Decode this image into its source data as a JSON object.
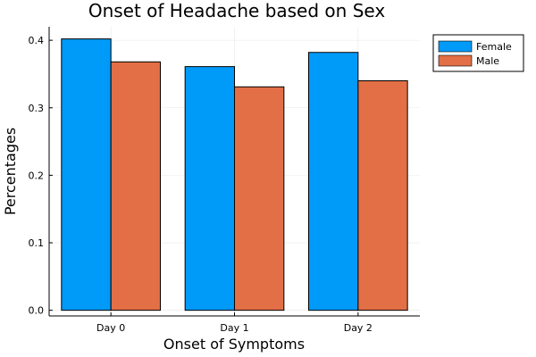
{
  "chart_data": {
    "type": "bar",
    "title": "Onset of Headache based on Sex",
    "xlabel": "Onset of Symptoms",
    "ylabel": "Percentages",
    "categories": [
      "Day 0",
      "Day 1",
      "Day 2"
    ],
    "series": [
      {
        "name": "Female",
        "color": "#009af9",
        "values": [
          0.402,
          0.361,
          0.382
        ]
      },
      {
        "name": "Male",
        "color": "#e26f46",
        "values": [
          0.368,
          0.331,
          0.34
        ]
      }
    ],
    "ylim": [
      -0.0084,
      0.42
    ],
    "yticks": [
      0.0,
      0.1,
      0.2,
      0.3,
      0.4
    ],
    "ytick_labels": [
      "0.0",
      "0.1",
      "0.2",
      "0.3",
      "0.4"
    ],
    "grid": true,
    "legend_position": "top-right outside"
  }
}
